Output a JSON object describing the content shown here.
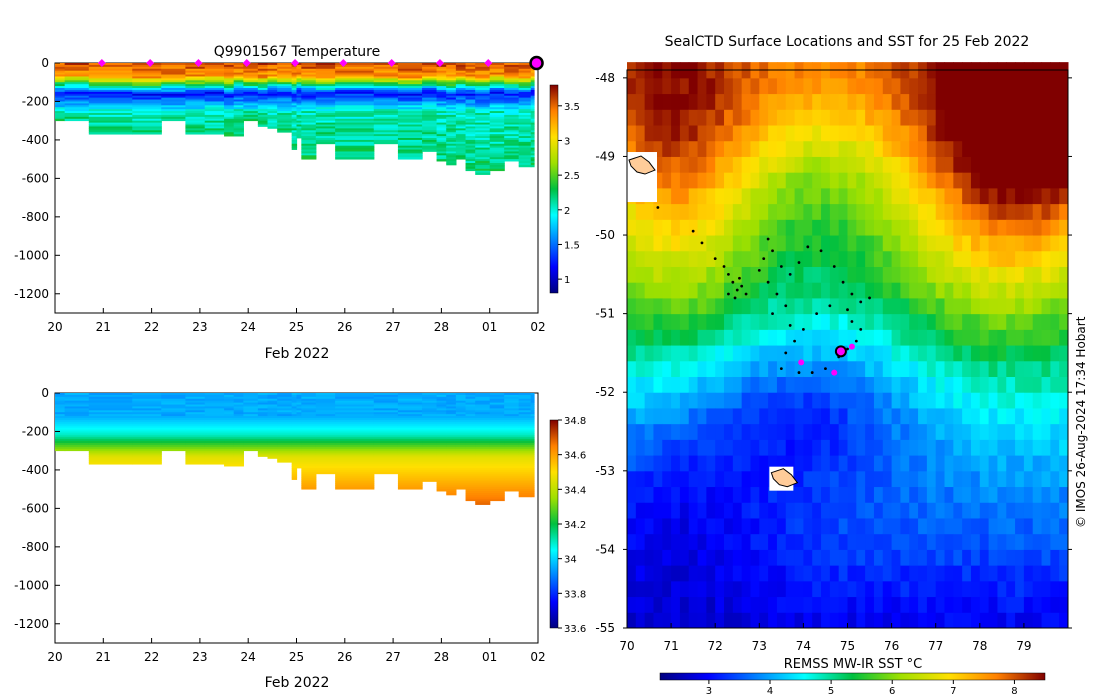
{
  "chart_data": [
    {
      "type": "heatmap",
      "name": "temperature-section",
      "title": "Q9901567  Temperature",
      "xlabel": "Feb 2022",
      "x_tick_labels": [
        "20",
        "21",
        "22",
        "23",
        "24",
        "25",
        "26",
        "27",
        "28",
        "01",
        "02"
      ],
      "y_tick_labels": [
        "0",
        "-200",
        "-400",
        "-600",
        "-800",
        "-1000",
        "-1200"
      ],
      "ylim": [
        -1300,
        0
      ],
      "colorbar": {
        "min": 0.8,
        "max": 3.8,
        "ticks": [
          "1",
          "1.5",
          "2",
          "2.5",
          "3",
          "3.5"
        ],
        "tick_values": [
          1,
          1.5,
          2,
          2.5,
          3,
          3.5
        ]
      },
      "surface_markers_day": [
        20.97,
        21.97,
        22.97,
        23.97,
        24.97,
        25.97,
        26.97,
        27.97,
        28.97
      ],
      "current_marker_day": 29.97,
      "profiles": [
        {
          "day": 20.0,
          "bottom": -300,
          "warm": -70,
          "therm": -160
        },
        {
          "day": 20.2,
          "bottom": -300,
          "warm": -70,
          "therm": -150
        },
        {
          "day": 20.7,
          "bottom": -370,
          "warm": -80,
          "therm": -160
        },
        {
          "day": 21.6,
          "bottom": -370,
          "warm": -85,
          "therm": -165
        },
        {
          "day": 22.2,
          "bottom": -300,
          "warm": -80,
          "therm": -160
        },
        {
          "day": 22.7,
          "bottom": -370,
          "warm": -75,
          "therm": -160
        },
        {
          "day": 23.1,
          "bottom": -370,
          "warm": -70,
          "therm": -155
        },
        {
          "day": 23.5,
          "bottom": -380,
          "warm": -80,
          "therm": -165
        },
        {
          "day": 23.7,
          "bottom": -380,
          "warm": -70,
          "therm": -150
        },
        {
          "day": 23.9,
          "bottom": -300,
          "warm": -75,
          "therm": -160
        },
        {
          "day": 24.2,
          "bottom": -330,
          "warm": -80,
          "therm": -165
        },
        {
          "day": 24.4,
          "bottom": -340,
          "warm": -70,
          "therm": -150
        },
        {
          "day": 24.6,
          "bottom": -360,
          "warm": -75,
          "therm": -155
        },
        {
          "day": 24.9,
          "bottom": -450,
          "warm": -80,
          "therm": -165
        },
        {
          "day": 25.0,
          "bottom": -390,
          "warm": -70,
          "therm": -150
        },
        {
          "day": 25.1,
          "bottom": -500,
          "warm": -75,
          "therm": -160
        },
        {
          "day": 25.4,
          "bottom": -420,
          "warm": -80,
          "therm": -165
        },
        {
          "day": 25.8,
          "bottom": -500,
          "warm": -70,
          "therm": -150
        },
        {
          "day": 26.6,
          "bottom": -420,
          "warm": -75,
          "therm": -160
        },
        {
          "day": 27.1,
          "bottom": -500,
          "warm": -80,
          "therm": -165
        },
        {
          "day": 27.6,
          "bottom": -460,
          "warm": -70,
          "therm": -150
        },
        {
          "day": 27.9,
          "bottom": -510,
          "warm": -75,
          "therm": -160
        },
        {
          "day": 28.1,
          "bottom": -530,
          "warm": -80,
          "therm": -165
        },
        {
          "day": 28.3,
          "bottom": -500,
          "warm": -70,
          "therm": -150
        },
        {
          "day": 28.5,
          "bottom": -560,
          "warm": -75,
          "therm": -160
        },
        {
          "day": 28.7,
          "bottom": -580,
          "warm": -80,
          "therm": -165
        },
        {
          "day": 29.0,
          "bottom": -560,
          "warm": -70,
          "therm": -150
        },
        {
          "day": 29.3,
          "bottom": -510,
          "warm": -75,
          "therm": -160
        },
        {
          "day": 29.6,
          "bottom": -540,
          "warm": -80,
          "therm": -165
        },
        {
          "day": 29.85,
          "bottom": -540,
          "warm": -70,
          "therm": -150
        }
      ]
    },
    {
      "type": "heatmap",
      "name": "salinity-section",
      "title": "",
      "xlabel": "Feb 2022",
      "x_tick_labels": [
        "20",
        "21",
        "22",
        "23",
        "24",
        "25",
        "26",
        "27",
        "28",
        "01",
        "02"
      ],
      "y_tick_labels": [
        "0",
        "-200",
        "-400",
        "-600",
        "-800",
        "-1000",
        "-1200"
      ],
      "ylim": [
        -1300,
        0
      ],
      "colorbar": {
        "min": 33.6,
        "max": 34.8,
        "ticks": [
          "33.6",
          "33.8",
          "34",
          "34.2",
          "34.4",
          "34.6",
          "34.8"
        ],
        "tick_values": [
          33.6,
          33.8,
          34,
          34.2,
          34.4,
          34.6,
          34.8
        ]
      }
    },
    {
      "type": "heatmap",
      "name": "sst-map",
      "title": "SealCTD Surface Locations and SST for 25 Feb 2022",
      "x_tick_labels": [
        "70",
        "71",
        "72",
        "73",
        "74",
        "75",
        "76",
        "77",
        "78",
        "79"
      ],
      "y_tick_labels": [
        "-48",
        "-49",
        "-50",
        "-51",
        "-52",
        "-53",
        "-54",
        "-55"
      ],
      "xlim": [
        70,
        80
      ],
      "ylim": [
        -55,
        -47.9
      ],
      "colorbar": {
        "label": "REMSS MW-IR SST °C",
        "min": 2.2,
        "max": 8.5,
        "ticks": [
          "3",
          "4",
          "5",
          "6",
          "7",
          "8"
        ],
        "tick_values": [
          3,
          4,
          5,
          6,
          7,
          8
        ]
      },
      "track_points": [
        [
          70.7,
          -49.65
        ],
        [
          71.5,
          -49.95
        ],
        [
          71.7,
          -50.1
        ],
        [
          72.0,
          -50.3
        ],
        [
          72.2,
          -50.4
        ],
        [
          72.3,
          -50.5
        ],
        [
          72.4,
          -50.6
        ],
        [
          72.5,
          -50.7
        ],
        [
          72.6,
          -50.65
        ],
        [
          72.7,
          -50.75
        ],
        [
          72.45,
          -50.8
        ],
        [
          72.3,
          -50.75
        ],
        [
          72.55,
          -50.55
        ],
        [
          73.0,
          -50.45
        ],
        [
          73.1,
          -50.3
        ],
        [
          73.2,
          -50.05
        ],
        [
          73.3,
          -50.2
        ],
        [
          73.5,
          -50.4
        ],
        [
          73.7,
          -50.5
        ],
        [
          73.9,
          -50.35
        ],
        [
          74.1,
          -50.15
        ],
        [
          74.4,
          -50.2
        ],
        [
          74.7,
          -50.4
        ],
        [
          74.9,
          -50.6
        ],
        [
          75.1,
          -50.75
        ],
        [
          75.3,
          -50.85
        ],
        [
          75.5,
          -50.8
        ],
        [
          75.0,
          -50.95
        ],
        [
          74.6,
          -50.9
        ],
        [
          74.3,
          -51.0
        ],
        [
          74.0,
          -51.2
        ],
        [
          73.8,
          -51.35
        ],
        [
          73.6,
          -51.5
        ],
        [
          73.5,
          -51.7
        ],
        [
          73.9,
          -51.75
        ],
        [
          74.2,
          -51.75
        ],
        [
          74.5,
          -51.7
        ],
        [
          74.8,
          -51.55
        ],
        [
          75.0,
          -51.45
        ],
        [
          75.2,
          -51.35
        ],
        [
          75.3,
          -51.2
        ],
        [
          75.1,
          -51.1
        ],
        [
          73.2,
          -50.6
        ],
        [
          73.4,
          -50.75
        ],
        [
          73.6,
          -50.9
        ],
        [
          73.3,
          -51.0
        ],
        [
          73.7,
          -51.15
        ]
      ],
      "daily_positions": [
        [
          73.95,
          -51.62
        ],
        [
          74.7,
          -51.75
        ],
        [
          75.1,
          -51.42
        ]
      ],
      "current_position": [
        74.85,
        -51.48
      ],
      "islands": [
        {
          "name": "Heard Island",
          "lon": 73.5,
          "lat": -53.1
        },
        {
          "name": "Kerguelen",
          "lon": 70.2,
          "lat": -49.3
        }
      ]
    }
  ],
  "credit": "© IMOS 26-Aug-2024 17:34 Hobart"
}
